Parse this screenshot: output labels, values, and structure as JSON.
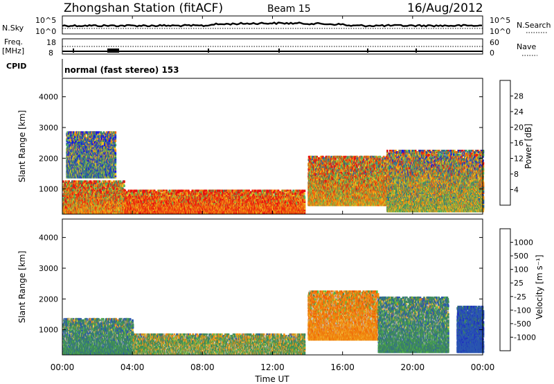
{
  "header": {
    "station": "Zhongshan Station (fitACF)",
    "beam": "Beam 15",
    "date": "16/Aug/2012"
  },
  "params": {
    "nsky_label": "N.Sky",
    "nsky_ticks": [
      "10^5",
      "10^0"
    ],
    "nsearch_label": "N.Search",
    "nsearch_ticks": [
      "10^5",
      "10^0"
    ],
    "freq_label": "Freq.",
    "freq_unit": "[MHz]",
    "freq_ticks": [
      "18",
      "8"
    ],
    "nave_label": "Nave",
    "nave_ticks": [
      "60",
      "0"
    ],
    "cpid_label": "CPID",
    "cpid_text": "normal (fast stereo) 153"
  },
  "colors": {
    "power": [
      "#1515e6",
      "#2a56b0",
      "#3f8a5a",
      "#58b858",
      "#f0c020",
      "#f08a10",
      "#f05a08",
      "#e81010"
    ],
    "velocity": [
      "#e81010",
      "#f05a08",
      "#f08a10",
      "#f0c040",
      "#c0c0c0",
      "#58c040",
      "#3f8a5a",
      "#2a56b0",
      "#2030c0"
    ]
  },
  "chart_data": [
    {
      "type": "heatmap",
      "panel": "power",
      "ylabel": "Slant Range [km]",
      "yticks": [
        "4000",
        "3000",
        "2000",
        "1000"
      ],
      "ylim": [
        180,
        4600
      ],
      "xlim": [
        0,
        24
      ],
      "colorbar_label": "Power [dB]",
      "colorbar_ticks": [
        "28",
        "24",
        "20",
        "16",
        "12",
        "8",
        "4"
      ],
      "regions": [
        {
          "t": [
            0.0,
            3.5
          ],
          "r": [
            250,
            1300
          ],
          "power_db": 22
        },
        {
          "t": [
            3.5,
            13.8
          ],
          "r": [
            250,
            1000
          ],
          "power_db": 26
        },
        {
          "t": [
            0.2,
            3.0
          ],
          "r": [
            1400,
            2900
          ],
          "power_db": 10
        },
        {
          "t": [
            14.0,
            18.5
          ],
          "r": [
            500,
            2100
          ],
          "power_db": 20
        },
        {
          "t": [
            18.5,
            24.0
          ],
          "r": [
            300,
            2300
          ],
          "power_db": 16
        }
      ]
    },
    {
      "type": "heatmap",
      "panel": "velocity",
      "ylabel": "Slant Range [km]",
      "xlabel": "Time UT",
      "xticks": [
        "00:00",
        "04:00",
        "08:00",
        "12:00",
        "16:00",
        "20:00",
        "00:00"
      ],
      "yticks": [
        "4000",
        "3000",
        "2000",
        "1000"
      ],
      "ylim": [
        180,
        4600
      ],
      "xlim": [
        0,
        24
      ],
      "colorbar_label": "Velocity [m s⁻¹]",
      "colorbar_ticks": [
        "1000",
        "500",
        "100",
        "25",
        "-25",
        "-100",
        "-500",
        "-1000"
      ],
      "regions": [
        {
          "t": [
            0.0,
            4.0
          ],
          "r": [
            250,
            1400
          ],
          "velocity": 300
        },
        {
          "t": [
            4.0,
            13.8
          ],
          "r": [
            250,
            900
          ],
          "velocity": 100
        },
        {
          "t": [
            14.0,
            18.0
          ],
          "r": [
            700,
            2300
          ],
          "velocity": -300
        },
        {
          "t": [
            18.0,
            22.0
          ],
          "r": [
            300,
            2100
          ],
          "velocity": 300
        },
        {
          "t": [
            22.5,
            24.0
          ],
          "r": [
            300,
            1800
          ],
          "velocity": 800
        }
      ]
    }
  ]
}
